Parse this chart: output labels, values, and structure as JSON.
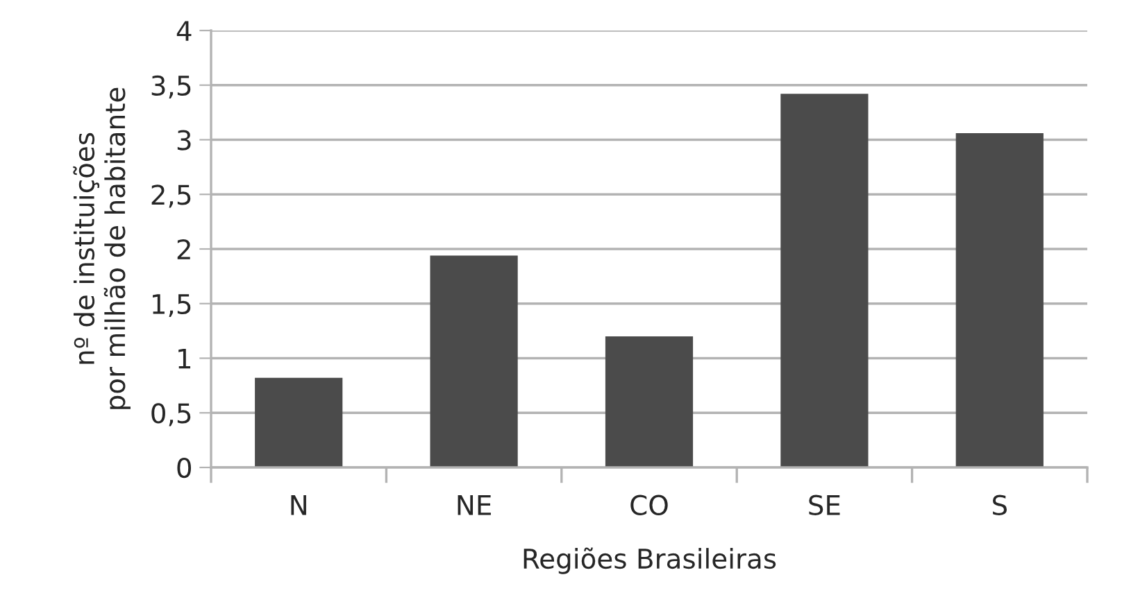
{
  "chart_data": {
    "type": "bar",
    "xlabel": "Regiões Brasileiras",
    "ylabel": "nº de instituições\npor milhão de habitante",
    "categories": [
      "N",
      "NE",
      "CO",
      "SE",
      "S"
    ],
    "values": [
      0.82,
      1.94,
      1.2,
      3.42,
      3.06
    ],
    "color": "#4b4b4b",
    "ylim": [
      0,
      4
    ],
    "yticks": [
      0,
      {
        "value": 0.5,
        "label": "0,5"
      },
      1,
      {
        "value": 1.5,
        "label": "1,5"
      },
      2,
      {
        "value": 2.5,
        "label": "2,5"
      },
      3,
      {
        "value": 3.5,
        "label": "3,5"
      },
      4
    ],
    "grid": "y"
  }
}
